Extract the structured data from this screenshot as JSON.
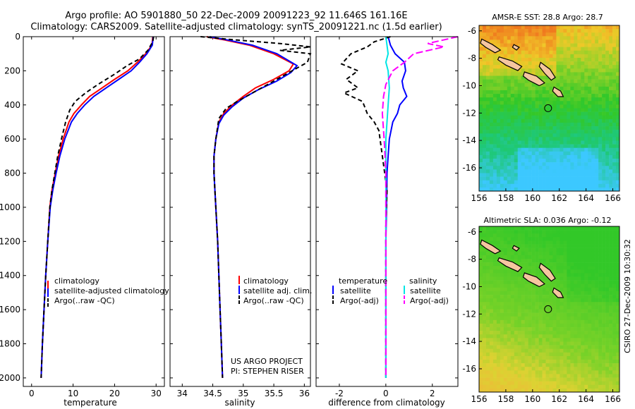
{
  "title": {
    "line1": "Argo profile: AO 5901880_50 22-Dec-2009 20091223_92 11.646S 161.16E",
    "line2": "Climatology: CARS2009. Satellite-adjusted climatology: synTS_20091221.nc (1.5d earlier)"
  },
  "credit": {
    "project": "US ARGO PROJECT",
    "pi": "PI: STEPHEN RISER",
    "stamp": "CSIRO 27-Dec-2009 10:30:32"
  },
  "colors": {
    "climatology": "#ff0000",
    "satellite": "#0000ff",
    "argo": "#000000",
    "salinity_satellite": "#00e5e5",
    "salinity_argo": "#ff00ff",
    "land": "#f5c6a0"
  },
  "chart_data": [
    {
      "id": "temperature",
      "type": "line",
      "xlabel": "temperature",
      "xlim": [
        -2,
        32
      ],
      "xticks": [
        0,
        10,
        20,
        30
      ],
      "xtick_labels": [
        "0",
        "10",
        "20",
        "30"
      ],
      "ylim": [
        2050,
        0
      ],
      "yticks": [
        0,
        200,
        400,
        600,
        800,
        1000,
        1200,
        1400,
        1600,
        1800,
        2000
      ],
      "ytick_labels": [
        "0",
        "200",
        "400",
        "600",
        "800",
        "1000",
        "1200",
        "1400",
        "1600",
        "1800",
        "2000"
      ],
      "legend": [
        "climatology",
        "satellite-adjusted climatology",
        "Argo(..raw -QC)"
      ],
      "series": [
        {
          "name": "climatology",
          "color": "#ff0000",
          "dash": "",
          "points": [
            [
              29.2,
              0
            ],
            [
              29.0,
              50
            ],
            [
              27.5,
              100
            ],
            [
              25.5,
              150
            ],
            [
              23.2,
              200
            ],
            [
              20.0,
              250
            ],
            [
              17.0,
              300
            ],
            [
              14.0,
              350
            ],
            [
              12.0,
              400
            ],
            [
              10.2,
              450
            ],
            [
              9.0,
              500
            ],
            [
              7.6,
              600
            ],
            [
              6.5,
              700
            ],
            [
              5.7,
              800
            ],
            [
              4.9,
              900
            ],
            [
              4.4,
              1000
            ],
            [
              3.9,
              1200
            ],
            [
              3.4,
              1400
            ],
            [
              3.0,
              1600
            ],
            [
              2.6,
              1800
            ],
            [
              2.3,
              2000
            ]
          ]
        },
        {
          "name": "satellite-adjusted climatology",
          "color": "#0000ff",
          "dash": "",
          "points": [
            [
              29.3,
              0
            ],
            [
              29.1,
              50
            ],
            [
              27.8,
              100
            ],
            [
              26.0,
              150
            ],
            [
              24.0,
              200
            ],
            [
              21.0,
              250
            ],
            [
              18.0,
              300
            ],
            [
              15.0,
              350
            ],
            [
              12.8,
              400
            ],
            [
              11.0,
              450
            ],
            [
              9.6,
              500
            ],
            [
              8.0,
              600
            ],
            [
              6.8,
              700
            ],
            [
              5.9,
              800
            ],
            [
              5.1,
              900
            ],
            [
              4.5,
              1000
            ],
            [
              3.9,
              1200
            ],
            [
              3.4,
              1400
            ],
            [
              3.0,
              1600
            ],
            [
              2.6,
              1800
            ],
            [
              2.3,
              2000
            ]
          ]
        },
        {
          "name": "Argo(..raw -QC)",
          "color": "#000000",
          "dash": "6,4",
          "points": [
            [
              29.4,
              0
            ],
            [
              29.2,
              30
            ],
            [
              28.0,
              80
            ],
            [
              26.0,
              130
            ],
            [
              23.0,
              170
            ],
            [
              20.0,
              220
            ],
            [
              16.0,
              280
            ],
            [
              13.0,
              330
            ],
            [
              10.5,
              380
            ],
            [
              9.2,
              430
            ],
            [
              8.2,
              500
            ],
            [
              7.2,
              600
            ],
            [
              6.3,
              700
            ],
            [
              5.6,
              800
            ],
            [
              4.9,
              900
            ],
            [
              4.4,
              1000
            ],
            [
              3.9,
              1200
            ],
            [
              3.4,
              1400
            ],
            [
              3.0,
              1600
            ],
            [
              2.6,
              1800
            ],
            [
              2.3,
              2000
            ]
          ]
        }
      ]
    },
    {
      "id": "salinity",
      "type": "line",
      "xlabel": "salinity",
      "xlim": [
        33.8,
        36.1
      ],
      "xticks": [
        34,
        34.5,
        35,
        35.5,
        36
      ],
      "xtick_labels": [
        "34",
        "34.5",
        "35",
        "35.5",
        "36"
      ],
      "ylim": [
        2050,
        0
      ],
      "legend": [
        "climatology",
        "satellite adj. clim.",
        "Argo(..raw -QC)"
      ],
      "series": [
        {
          "name": "climatology",
          "color": "#ff0000",
          "dash": "",
          "points": [
            [
              34.4,
              0
            ],
            [
              34.7,
              20
            ],
            [
              35.1,
              50
            ],
            [
              35.5,
              100
            ],
            [
              35.82,
              160
            ],
            [
              35.75,
              200
            ],
            [
              35.5,
              250
            ],
            [
              35.2,
              300
            ],
            [
              35.0,
              350
            ],
            [
              34.82,
              400
            ],
            [
              34.68,
              450
            ],
            [
              34.6,
              500
            ],
            [
              34.55,
              600
            ],
            [
              34.52,
              700
            ],
            [
              34.52,
              800
            ],
            [
              34.55,
              1000
            ],
            [
              34.58,
              1200
            ],
            [
              34.6,
              1400
            ],
            [
              34.62,
              1600
            ],
            [
              34.64,
              1800
            ],
            [
              34.66,
              2000
            ]
          ]
        },
        {
          "name": "satellite adj. clim.",
          "color": "#0000ff",
          "dash": "",
          "points": [
            [
              34.45,
              0
            ],
            [
              34.75,
              20
            ],
            [
              35.15,
              50
            ],
            [
              35.55,
              100
            ],
            [
              35.88,
              170
            ],
            [
              35.78,
              210
            ],
            [
              35.55,
              260
            ],
            [
              35.25,
              310
            ],
            [
              35.0,
              360
            ],
            [
              34.82,
              410
            ],
            [
              34.68,
              460
            ],
            [
              34.6,
              510
            ],
            [
              34.55,
              600
            ],
            [
              34.52,
              700
            ],
            [
              34.52,
              800
            ],
            [
              34.55,
              1000
            ],
            [
              34.58,
              1200
            ],
            [
              34.6,
              1400
            ],
            [
              34.62,
              1600
            ],
            [
              34.64,
              1800
            ],
            [
              34.66,
              2000
            ]
          ]
        },
        {
          "name": "Argo(..raw -QC)",
          "color": "#000000",
          "dash": "6,4",
          "points": [
            [
              34.3,
              0
            ],
            [
              34.9,
              20
            ],
            [
              35.6,
              40
            ],
            [
              36.1,
              60
            ],
            [
              35.6,
              80
            ],
            [
              36.1,
              100
            ],
            [
              36.05,
              150
            ],
            [
              35.8,
              200
            ],
            [
              35.5,
              260
            ],
            [
              35.2,
              320
            ],
            [
              34.9,
              380
            ],
            [
              34.72,
              420
            ],
            [
              34.6,
              480
            ],
            [
              34.55,
              600
            ],
            [
              34.52,
              700
            ],
            [
              34.52,
              800
            ],
            [
              34.55,
              1000
            ],
            [
              34.58,
              1200
            ],
            [
              34.6,
              1400
            ],
            [
              34.62,
              1600
            ],
            [
              34.64,
              1800
            ],
            [
              34.66,
              2000
            ]
          ]
        }
      ]
    },
    {
      "id": "difference",
      "type": "line",
      "xlabel": "difference from climatology",
      "xlim": [
        -3,
        3.1
      ],
      "xticks": [
        -2,
        0,
        2
      ],
      "xtick_labels": [
        "-2",
        "0",
        "2"
      ],
      "ylim": [
        2050,
        0
      ],
      "legend_groups": [
        {
          "title": "temperature",
          "entries": [
            "satellite",
            "Argo(-adj)"
          ]
        },
        {
          "title": "salinity",
          "entries": [
            "satellite",
            "Argo(-adj)"
          ]
        }
      ],
      "series": [
        {
          "name": "temperature satellite",
          "color": "#0000ff",
          "dash": "",
          "points": [
            [
              0.1,
              0
            ],
            [
              0.2,
              50
            ],
            [
              0.4,
              100
            ],
            [
              0.8,
              150
            ],
            [
              0.85,
              200
            ],
            [
              0.7,
              260
            ],
            [
              0.75,
              300
            ],
            [
              0.9,
              350
            ],
            [
              0.6,
              400
            ],
            [
              0.5,
              450
            ],
            [
              0.3,
              500
            ],
            [
              0.15,
              600
            ],
            [
              0.1,
              700
            ],
            [
              0.05,
              800
            ],
            [
              0.03,
              1000
            ],
            [
              0.0,
              1200
            ],
            [
              0.0,
              1600
            ],
            [
              0.0,
              2000
            ]
          ]
        },
        {
          "name": "temperature Argo(-adj)",
          "color": "#000000",
          "dash": "6,4",
          "points": [
            [
              0.2,
              0
            ],
            [
              -0.5,
              30
            ],
            [
              -0.8,
              60
            ],
            [
              -1.5,
              100
            ],
            [
              -1.9,
              160
            ],
            [
              -1.2,
              200
            ],
            [
              -1.7,
              250
            ],
            [
              -1.2,
              300
            ],
            [
              -1.8,
              330
            ],
            [
              -1.0,
              380
            ],
            [
              -0.8,
              450
            ],
            [
              -0.5,
              500
            ],
            [
              -0.3,
              550
            ],
            [
              -0.2,
              650
            ],
            [
              -0.1,
              750
            ],
            [
              0.05,
              900
            ],
            [
              0.0,
              1100
            ],
            [
              0.0,
              1400
            ],
            [
              0.0,
              2000
            ]
          ]
        },
        {
          "name": "salinity satellite",
          "color": "#00e5e5",
          "dash": "",
          "points": [
            [
              0.0,
              0
            ],
            [
              0.05,
              50
            ],
            [
              0.1,
              100
            ],
            [
              0.0,
              150
            ],
            [
              0.1,
              200
            ],
            [
              0.15,
              300
            ],
            [
              0.1,
              400
            ],
            [
              0.05,
              500
            ],
            [
              0.0,
              600
            ],
            [
              0.0,
              800
            ],
            [
              0.0,
              1000
            ],
            [
              0.0,
              1400
            ],
            [
              0.0,
              2000
            ]
          ]
        },
        {
          "name": "salinity Argo(-adj)",
          "color": "#ff00ff",
          "dash": "10,4",
          "points": [
            [
              3.1,
              0
            ],
            [
              1.8,
              40
            ],
            [
              2.5,
              60
            ],
            [
              1.2,
              100
            ],
            [
              0.8,
              150
            ],
            [
              0.3,
              200
            ],
            [
              0.0,
              280
            ],
            [
              -0.1,
              350
            ],
            [
              -0.15,
              450
            ],
            [
              -0.1,
              550
            ],
            [
              -0.05,
              650
            ],
            [
              0.0,
              800
            ],
            [
              0.0,
              1000
            ],
            [
              0.0,
              1400
            ],
            [
              0.0,
              2000
            ]
          ]
        }
      ]
    },
    {
      "id": "sst_map",
      "type": "heatmap",
      "title": "AMSR-E SST: 28.8 Argo: 28.7",
      "xlim": [
        156,
        166.5
      ],
      "ylim": [
        -17.7,
        -5.6
      ],
      "xticks": [
        156,
        158,
        160,
        162,
        164,
        166
      ],
      "xtick_labels": [
        "156",
        "158",
        "160",
        "162",
        "164",
        "166"
      ],
      "yticks": [
        -6,
        -8,
        -10,
        -12,
        -14,
        -16
      ],
      "ytick_labels": [
        "-6",
        "-8",
        "-10",
        "-12",
        "-14",
        "-16"
      ],
      "argo_position": [
        161.16,
        -11.646
      ]
    },
    {
      "id": "sla_map",
      "type": "heatmap",
      "title": "Altimetric SLA: 0.036 Argo: -0.12",
      "xlim": [
        156,
        166.5
      ],
      "ylim": [
        -17.7,
        -5.6
      ],
      "xticks": [
        156,
        158,
        160,
        162,
        164,
        166
      ],
      "xtick_labels": [
        "156",
        "158",
        "160",
        "162",
        "164",
        "166"
      ],
      "yticks": [
        -6,
        -8,
        -10,
        -12,
        -14,
        -16
      ],
      "ytick_labels": [
        "-6",
        "-8",
        "-10",
        "-12",
        "-14",
        "-16"
      ],
      "argo_position": [
        161.16,
        -11.646
      ]
    }
  ]
}
